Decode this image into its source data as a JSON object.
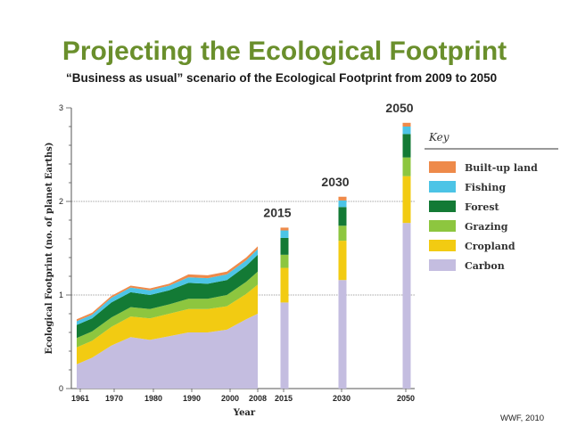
{
  "slide": {
    "title": "Projecting the Ecological Footprint",
    "subtitle": "“Business as usual” scenario of the Ecological Footprint from 2009 to 2050",
    "credit": "WWF, 2010"
  },
  "colors": {
    "carbon": "#c4bde0",
    "cropland": "#f2cb12",
    "grazing": "#8dc63f",
    "forest": "#137a35",
    "fishing": "#4cc4e6",
    "built_up_land": "#ee8a4a",
    "title": "#6a8f2c",
    "gridline": "#888888"
  },
  "chart_data": {
    "type": "area",
    "ylabel": "Ecological Footprint (no. of planet Earths)",
    "xlabel": "Year",
    "ylim": [
      0,
      3
    ],
    "y_ticks": [
      "0",
      "1",
      "2",
      "3"
    ],
    "x_ticks": [
      "1961",
      "1970",
      "1980",
      "1990",
      "2000",
      "2008",
      "2015",
      "2030",
      "2050"
    ],
    "reference_lines": [
      1,
      2
    ],
    "legend": {
      "title": "Key",
      "position": "right",
      "items": [
        "Built-up land",
        "Fishing",
        "Forest",
        "Grazing",
        "Cropland",
        "Carbon"
      ]
    },
    "series_order_bottom_to_top": [
      "Carbon",
      "Cropland",
      "Grazing",
      "Forest",
      "Fishing",
      "Built-up land"
    ],
    "historical": {
      "years": [
        1961,
        1965,
        1970,
        1975,
        1980,
        1985,
        1990,
        1995,
        2000,
        2005,
        2008
      ],
      "series": [
        {
          "name": "Carbon",
          "values": [
            0.26,
            0.33,
            0.46,
            0.55,
            0.52,
            0.56,
            0.6,
            0.6,
            0.63,
            0.74,
            0.8
          ]
        },
        {
          "name": "Cropland",
          "values": [
            0.18,
            0.18,
            0.2,
            0.22,
            0.23,
            0.24,
            0.25,
            0.25,
            0.25,
            0.27,
            0.31
          ]
        },
        {
          "name": "Grazing",
          "values": [
            0.1,
            0.1,
            0.1,
            0.1,
            0.1,
            0.1,
            0.11,
            0.11,
            0.12,
            0.13,
            0.14
          ]
        },
        {
          "name": "Forest",
          "values": [
            0.14,
            0.14,
            0.16,
            0.16,
            0.15,
            0.15,
            0.17,
            0.16,
            0.16,
            0.17,
            0.18
          ]
        },
        {
          "name": "Fishing",
          "values": [
            0.04,
            0.04,
            0.05,
            0.05,
            0.05,
            0.05,
            0.06,
            0.06,
            0.06,
            0.06,
            0.06
          ]
        },
        {
          "name": "Built-up land",
          "values": [
            0.02,
            0.02,
            0.02,
            0.02,
            0.02,
            0.02,
            0.03,
            0.03,
            0.03,
            0.03,
            0.03
          ]
        }
      ]
    },
    "projections": [
      {
        "year": "2015",
        "values": {
          "Carbon": 0.92,
          "Cropland": 0.37,
          "Grazing": 0.14,
          "Forest": 0.18,
          "Fishing": 0.08,
          "Built-up land": 0.03
        }
      },
      {
        "year": "2030",
        "values": {
          "Carbon": 1.16,
          "Cropland": 0.42,
          "Grazing": 0.16,
          "Forest": 0.2,
          "Fishing": 0.07,
          "Built-up land": 0.04
        }
      },
      {
        "year": "2050",
        "values": {
          "Carbon": 1.77,
          "Cropland": 0.5,
          "Grazing": 0.2,
          "Forest": 0.25,
          "Fishing": 0.08,
          "Built-up land": 0.04
        }
      }
    ]
  }
}
